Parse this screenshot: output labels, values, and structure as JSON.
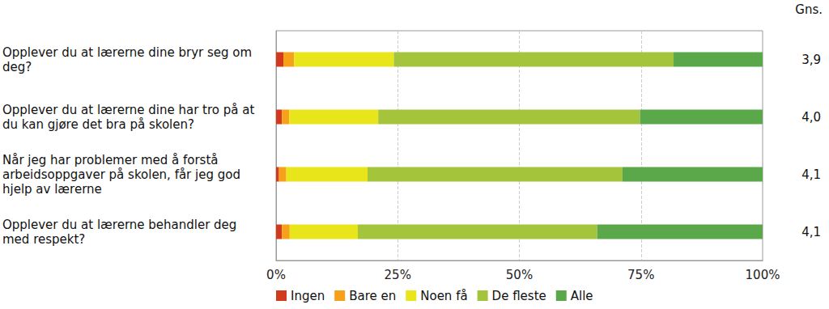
{
  "chart_data": {
    "type": "bar",
    "orientation": "horizontal",
    "stacked": true,
    "grid": true,
    "legend": "bottom",
    "categories": [
      "Opplever du at lærerne dine bryr seg om deg?",
      "Opplever du at lærerne dine har tro på at du kan gjøre det bra på skolen?",
      "Når jeg har problemer med å forstå arbeidsoppgaver på skolen, får jeg god hjelp av lærerne",
      "Opplever du at lærerne behandler deg med respekt?"
    ],
    "series": [
      {
        "name": "Ingen",
        "color": "#d23a1e",
        "values": [
          1.5,
          1.2,
          0.6,
          1.2
        ]
      },
      {
        "name": "Bare en",
        "color": "#f7a11a",
        "values": [
          2.2,
          1.5,
          1.5,
          1.6
        ]
      },
      {
        "name": "Noen få",
        "color": "#e9e51b",
        "values": [
          20.5,
          18.3,
          16.7,
          14.0
        ]
      },
      {
        "name": "De fleste",
        "color": "#a4c43c",
        "values": [
          57.5,
          53.8,
          52.4,
          49.2
        ]
      },
      {
        "name": "Alle",
        "color": "#5ba84b",
        "values": [
          18.3,
          25.2,
          28.8,
          34.0
        ]
      }
    ],
    "xlim": [
      0,
      100
    ],
    "xticks": [
      {
        "value": 0,
        "label": "0%"
      },
      {
        "value": 25,
        "label": "25%"
      },
      {
        "value": 50,
        "label": "50%"
      },
      {
        "value": 75,
        "label": "75%"
      },
      {
        "value": 100,
        "label": "100%"
      }
    ],
    "mean_header": "Gns.",
    "means": [
      {
        "value": 3.9,
        "label": "3,9"
      },
      {
        "value": 4.0,
        "label": "4,0"
      },
      {
        "value": 4.1,
        "label": "4,1"
      },
      {
        "value": 4.1,
        "label": "4,1"
      }
    ]
  }
}
